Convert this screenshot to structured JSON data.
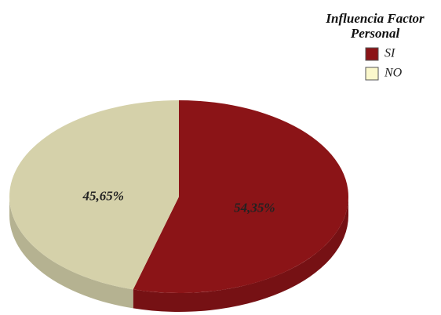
{
  "chart_data": {
    "type": "pie",
    "legend_title": "Influencia Factor Personal",
    "categories": [
      "SI",
      "NO"
    ],
    "values": [
      54.35,
      45.65
    ],
    "value_labels": [
      "54,35%",
      "45,65%"
    ],
    "colors": [
      "#8b1417",
      "#d5d1aa"
    ],
    "legend_colors": [
      "#8b1417",
      "#fbf8cc"
    ],
    "legend": "top-right"
  }
}
